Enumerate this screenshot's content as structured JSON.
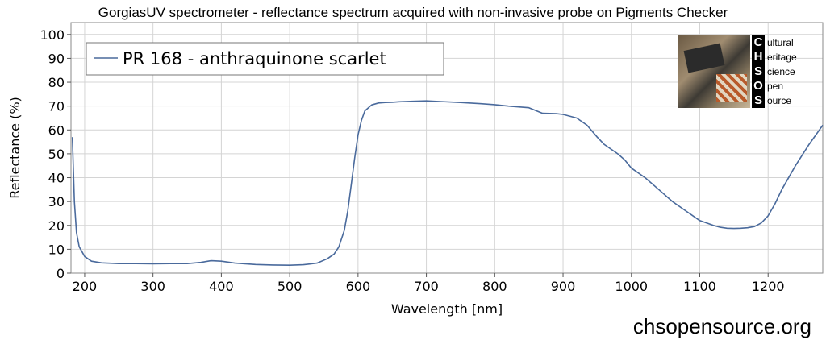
{
  "title": "GorgiasUV spectrometer - reflectance spectrum acquired with non-invasive probe on Pigments Checker",
  "footer_url": "chsopensource.org",
  "logo": {
    "initials": [
      "C",
      "H",
      "S",
      "O",
      "S"
    ],
    "words": [
      "ultural",
      "eritage",
      "cience",
      "pen",
      "ource"
    ]
  },
  "chart_data": {
    "type": "line",
    "xlabel": "Wavelength [nm]",
    "ylabel": "Reflectance (%)",
    "xlim": [
      180,
      1280
    ],
    "ylim": [
      0,
      105
    ],
    "xticks": [
      200,
      300,
      400,
      500,
      600,
      700,
      800,
      900,
      1000,
      1100,
      1200
    ],
    "yticks": [
      0,
      10,
      20,
      30,
      40,
      50,
      60,
      70,
      80,
      90,
      100
    ],
    "grid": true,
    "legend_position": "top-left",
    "line_color": "#4a6a9c",
    "series": [
      {
        "name": "PR 168 - anthraquinone scarlet",
        "x": [
          182,
          185,
          188,
          192,
          196,
          200,
          210,
          225,
          250,
          275,
          300,
          325,
          350,
          370,
          385,
          400,
          420,
          450,
          475,
          500,
          520,
          540,
          555,
          565,
          572,
          580,
          585,
          590,
          595,
          600,
          605,
          610,
          620,
          630,
          640,
          650,
          660,
          680,
          700,
          720,
          750,
          780,
          800,
          820,
          850,
          870,
          890,
          900,
          920,
          935,
          950,
          960,
          970,
          980,
          990,
          1000,
          1020,
          1040,
          1060,
          1080,
          1100,
          1110,
          1120,
          1130,
          1140,
          1150,
          1160,
          1170,
          1180,
          1190,
          1200,
          1210,
          1220,
          1240,
          1260,
          1280
        ],
        "y": [
          57,
          30,
          17,
          11,
          9,
          7,
          5,
          4.3,
          4,
          4,
          3.9,
          4,
          4,
          4.5,
          5.2,
          5,
          4.2,
          3.6,
          3.4,
          3.3,
          3.5,
          4.2,
          6,
          8,
          11,
          18,
          26,
          37,
          48,
          58,
          64,
          68,
          70.5,
          71.3,
          71.5,
          71.6,
          71.8,
          72,
          72.2,
          71.9,
          71.5,
          71,
          70.6,
          70,
          69.3,
          67,
          66.8,
          66.5,
          65,
          62,
          57,
          54,
          52,
          50,
          47.5,
          44,
          40,
          35,
          30,
          26,
          22,
          21,
          20,
          19.2,
          18.8,
          18.7,
          18.8,
          19,
          19.5,
          21,
          24,
          29,
          35,
          45,
          54,
          62
        ]
      }
    ]
  }
}
